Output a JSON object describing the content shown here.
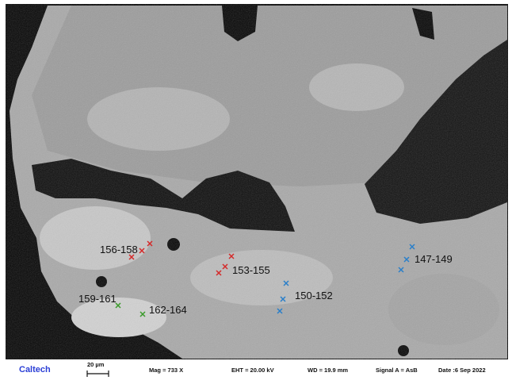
{
  "annotations": [
    {
      "label": "156-158",
      "color": "#d42a2a"
    },
    {
      "label": "153-155",
      "color": "#d42a2a"
    },
    {
      "label": "150-152",
      "color": "#2a7fc9"
    },
    {
      "label": "147-149",
      "color": "#2a7fc9"
    },
    {
      "label": "159-161",
      "color": "#3a9a2a"
    },
    {
      "label": "162-164",
      "color": "#3a9a2a"
    }
  ],
  "footer": {
    "institution": "Caltech",
    "scale_bar": "20 µm",
    "mag": "Mag =  733 X",
    "eht": "EHT = 20.00 kV",
    "wd": "WD = 19.9 mm",
    "signal": "Signal A = AsB",
    "date": "Date :6 Sep 2022"
  }
}
